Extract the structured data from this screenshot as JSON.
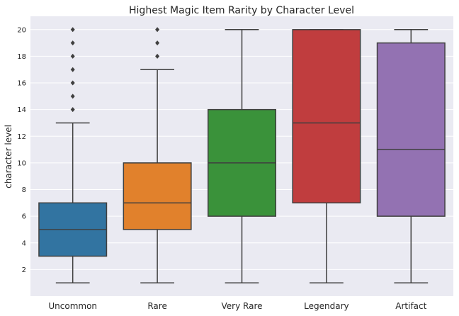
{
  "chart_data": {
    "type": "box",
    "title": "Highest Magic Item Rarity by Character Level",
    "xlabel": "",
    "ylabel": "character level",
    "ylim": [
      0,
      21
    ],
    "yticks": [
      2,
      4,
      6,
      8,
      10,
      12,
      14,
      16,
      18,
      20
    ],
    "grid": true,
    "categories": [
      "Uncommon",
      "Rare",
      "Very Rare",
      "Legendary",
      "Artifact"
    ],
    "boxes": [
      {
        "category": "Uncommon",
        "color": "#3274a1",
        "whisker_low": 1,
        "q1": 3,
        "median": 5,
        "q3": 7,
        "whisker_high": 13,
        "outliers": [
          14,
          15,
          16,
          17,
          18,
          19,
          20
        ]
      },
      {
        "category": "Rare",
        "color": "#e1812c",
        "whisker_low": 1,
        "q1": 5,
        "median": 7,
        "q3": 10,
        "whisker_high": 17,
        "outliers": [
          18,
          19,
          20
        ]
      },
      {
        "category": "Very Rare",
        "color": "#3a923a",
        "whisker_low": 1,
        "q1": 6,
        "median": 10,
        "q3": 14,
        "whisker_high": 20,
        "outliers": []
      },
      {
        "category": "Legendary",
        "color": "#c03d3e",
        "whisker_low": 1,
        "q1": 7,
        "median": 13,
        "q3": 20,
        "whisker_high": 20,
        "outliers": []
      },
      {
        "category": "Artifact",
        "color": "#9372b2",
        "whisker_low": 1,
        "q1": 6,
        "median": 11,
        "q3": 19,
        "whisker_high": 20,
        "outliers": []
      }
    ]
  }
}
